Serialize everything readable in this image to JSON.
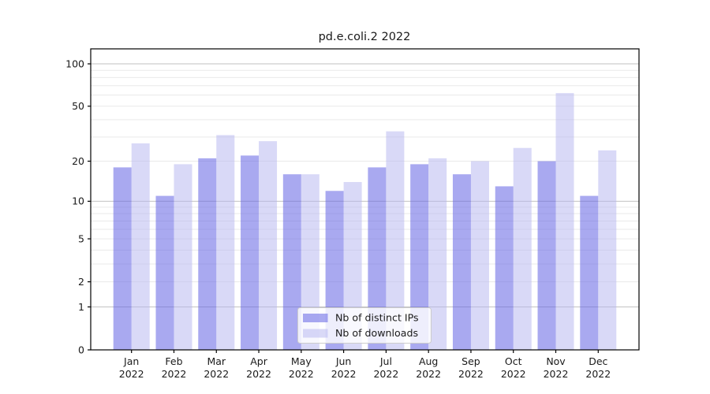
{
  "chart_data": {
    "type": "bar",
    "title": "pd.e.coli.2 2022",
    "categories": [
      "Jan",
      "Feb",
      "Mar",
      "Apr",
      "May",
      "Jun",
      "Jul",
      "Aug",
      "Sep",
      "Oct",
      "Nov",
      "Dec"
    ],
    "year_label": "2022",
    "series": [
      {
        "name": "Nb of distinct IPs",
        "color": "rgba(102,102,229,0.56)",
        "values": [
          18,
          11,
          21,
          22,
          16,
          12,
          18,
          19,
          16,
          13,
          20,
          11
        ]
      },
      {
        "name": "Nb of downloads",
        "color": "rgba(179,179,240,0.50)",
        "values": [
          27,
          19,
          31,
          28,
          16,
          14,
          33,
          21,
          20,
          25,
          62,
          24
        ]
      }
    ],
    "y_axis": {
      "scale": "log1p",
      "tick_labels": [
        0,
        1,
        2,
        5,
        10,
        20,
        50,
        100
      ],
      "minor_gridlines": [
        2,
        3,
        4,
        5,
        6,
        7,
        8,
        9,
        20,
        30,
        40,
        50,
        60,
        70,
        80,
        90
      ],
      "major_gridlines": [
        1,
        10,
        100
      ],
      "max": 127
    },
    "legend": {
      "position": "lower center"
    },
    "grid": true
  },
  "colors": {
    "bar_ips": "rgba(102,102,229,0.56)",
    "bar_downloads": "rgba(179,179,240,0.50)",
    "grid_minor": "#e9e9e9",
    "grid_major": "#c2c2c2",
    "axis_line": "#000000",
    "legend_border": "#cccccc",
    "legend_background": "rgba(255,255,255,0.8)"
  }
}
